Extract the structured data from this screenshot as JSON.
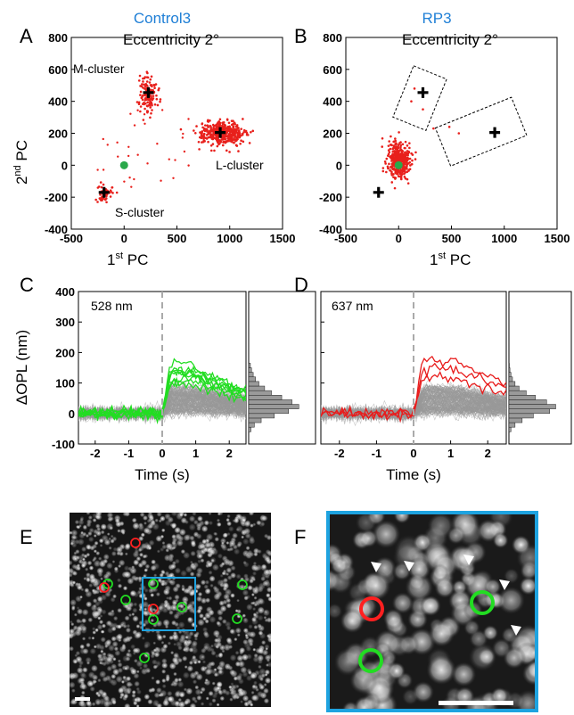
{
  "panels": {
    "A": {
      "letter": "A",
      "title": "Control3",
      "subtitle": "Eccentricity 2°"
    },
    "B": {
      "letter": "B",
      "title": "RP3",
      "subtitle": "Eccentricity 2°"
    },
    "C": {
      "letter": "C",
      "wavelength": "528 nm"
    },
    "D": {
      "letter": "D",
      "wavelength": "637 nm"
    },
    "E": {
      "letter": "E"
    },
    "F": {
      "letter": "F"
    }
  },
  "labels": {
    "pc1": "1",
    "pc1_sup": "st",
    "pc1_tail": " PC",
    "pc2": "2",
    "pc2_sup": "nd",
    "pc2_tail": " PC",
    "time": "Time (s)",
    "opl": "ΔOPL (nm)",
    "m_cluster": "M-cluster",
    "l_cluster": "L-cluster",
    "s_cluster": "S-cluster"
  },
  "colors": {
    "points": "#e8201c",
    "centroid": "#000000",
    "origin": "#2aa84a",
    "green_trace": "#22dd22",
    "red_trace": "#e81c1c",
    "gray_trace": "#999999",
    "blue_box": "#1ea3e0"
  },
  "chart_data": [
    {
      "panel": "A",
      "type": "scatter",
      "xlim": [
        -500,
        1500
      ],
      "ylim": [
        -400,
        800
      ],
      "xticks": [
        -500,
        0,
        500,
        1000,
        1500
      ],
      "yticks": [
        -400,
        -200,
        0,
        200,
        400,
        600,
        800
      ],
      "clusters": [
        {
          "label": "M-cluster",
          "center": [
            230,
            450
          ],
          "spread": [
            40,
            60
          ],
          "n": 140
        },
        {
          "label": "L-cluster",
          "center": [
            920,
            200
          ],
          "spread": [
            110,
            35
          ],
          "n": 420
        },
        {
          "label": "S-cluster",
          "center": [
            -180,
            -170
          ],
          "spread": [
            35,
            30
          ],
          "n": 50
        }
      ],
      "centroids": [
        [
          230,
          455
        ],
        [
          910,
          205
        ],
        [
          -190,
          -170
        ]
      ],
      "origin_point": [
        0,
        0
      ]
    },
    {
      "panel": "B",
      "type": "scatter",
      "xlim": [
        -500,
        1500
      ],
      "ylim": [
        -400,
        800
      ],
      "xticks": [
        -500,
        0,
        500,
        1000,
        1500
      ],
      "yticks": [
        -400,
        -200,
        0,
        200,
        400,
        600,
        800
      ],
      "clusters": [
        {
          "label": "",
          "center": [
            0,
            30
          ],
          "spread": [
            55,
            60
          ],
          "n": 380
        }
      ],
      "extra_points": [
        [
          150,
          480
        ],
        [
          120,
          400
        ],
        [
          480,
          240
        ],
        [
          570,
          200
        ],
        [
          330,
          230
        ],
        [
          230,
          350
        ]
      ],
      "centroids": [
        [
          230,
          455
        ],
        [
          910,
          205
        ],
        [
          -190,
          -170
        ]
      ],
      "origin_point": [
        0,
        0
      ]
    },
    {
      "panel": "C",
      "type": "line",
      "xlim": [
        -2.5,
        2.5
      ],
      "ylim": [
        -100,
        400
      ],
      "xticks": [
        -2,
        -1,
        0,
        1,
        2
      ],
      "yticks": [
        -100,
        0,
        100,
        200,
        300,
        400
      ],
      "stimulus_time": 0,
      "gray_traces": {
        "count": 150,
        "baseline": 0,
        "response_peak": 60,
        "noise": 22
      },
      "highlight_traces": {
        "color": "green",
        "count": 8,
        "response_peak": 150,
        "peak_time": 0.8
      }
    },
    {
      "panel": "D",
      "type": "line",
      "xlim": [
        -2.5,
        2.5
      ],
      "ylim": [
        -100,
        400
      ],
      "xticks": [
        -2,
        -1,
        0,
        1,
        2
      ],
      "yticks": [
        -100,
        0,
        100,
        200,
        300,
        400
      ],
      "stimulus_time": 0,
      "gray_traces": {
        "count": 150,
        "baseline": 0,
        "response_peak": 60,
        "noise": 22
      },
      "highlight_traces": {
        "color": "red",
        "count": 3,
        "response_peak": 160,
        "peak_time": 1.0
      }
    },
    {
      "panel": "C-hist",
      "type": "bar",
      "orientation": "horizontal",
      "bins": [
        -60,
        -45,
        -30,
        -15,
        0,
        15,
        30,
        45,
        60,
        75,
        90,
        105,
        120,
        135,
        150
      ],
      "values": [
        4,
        10,
        22,
        45,
        70,
        88,
        76,
        58,
        40,
        28,
        18,
        12,
        8,
        5,
        3
      ]
    },
    {
      "panel": "D-hist",
      "type": "bar",
      "orientation": "horizontal",
      "bins": [
        -60,
        -45,
        -30,
        -15,
        0,
        15,
        30,
        45,
        60,
        75,
        90,
        105,
        120,
        135,
        150
      ],
      "values": [
        4,
        12,
        26,
        48,
        80,
        92,
        74,
        52,
        34,
        20,
        12,
        7,
        4,
        2,
        1
      ]
    }
  ],
  "image_E": {
    "green_circles": 8,
    "red_circles": 3
  },
  "image_F": {
    "green_circles": 2,
    "red_circles": 1,
    "arrowheads": 5
  }
}
